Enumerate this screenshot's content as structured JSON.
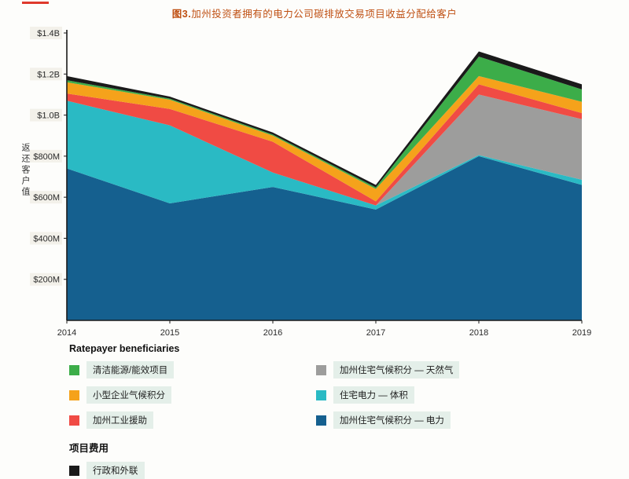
{
  "title": {
    "prefix": "图3.",
    "text": "加州投资者拥有的电力公司碳排放交易项目收益分配给客户"
  },
  "chart_data": {
    "type": "area",
    "stacked": true,
    "title": "图3.加州投资者拥有的电力公司碳排放交易项目收益分配给客户",
    "xlabel": "",
    "ylabel": "返还客户值",
    "x": [
      2014,
      2015,
      2016,
      2017,
      2018,
      2019
    ],
    "y_unit": "USD millions",
    "ylim": [
      0,
      1400
    ],
    "grid": false,
    "legend_position": "bottom",
    "yticks": [
      {
        "value": 200,
        "label": "$200M"
      },
      {
        "value": 400,
        "label": "$400M"
      },
      {
        "value": 600,
        "label": "$600M"
      },
      {
        "value": 800,
        "label": "$800M"
      },
      {
        "value": 1000,
        "label": "$1.0B"
      },
      {
        "value": 1200,
        "label": "$1.2B"
      },
      {
        "value": 1400,
        "label": "$1.4B"
      }
    ],
    "series": [
      {
        "name": "加州住宅气候积分 — 电力",
        "color": "#15608F",
        "values": [
          740,
          570,
          650,
          540,
          800,
          660
        ]
      },
      {
        "name": "住宅电力 — 体积",
        "color": "#2ABAC4",
        "values": [
          330,
          380,
          70,
          20,
          5,
          25
        ]
      },
      {
        "name": "加州住宅气候积分 — 天然气",
        "color": "#9D9D9C",
        "values": [
          0,
          0,
          0,
          0,
          295,
          295
        ]
      },
      {
        "name": "加州工业援助",
        "color": "#F04B44",
        "values": [
          35,
          80,
          150,
          20,
          50,
          30
        ]
      },
      {
        "name": "小型企业气候积分",
        "color": "#F5A21B",
        "values": [
          55,
          45,
          30,
          60,
          40,
          55
        ]
      },
      {
        "name": "清洁能源/能效项目",
        "color": "#3CAD49",
        "values": [
          10,
          5,
          5,
          8,
          95,
          60
        ]
      },
      {
        "name": "行政和外联",
        "color": "#1A1A1A",
        "values": [
          20,
          10,
          10,
          12,
          25,
          25
        ]
      }
    ]
  },
  "legend": {
    "beneficiaries_heading": "Ratepayer beneficiaries",
    "costs_heading": "项目费用",
    "col1": [
      {
        "label": "清洁能源/能效项目",
        "color": "#3CAD49"
      },
      {
        "label": "小型企业气候积分",
        "color": "#F5A21B"
      },
      {
        "label": "加州工业援助",
        "color": "#F04B44"
      }
    ],
    "col2": [
      {
        "label": "加州住宅气候积分 — 天然气",
        "color": "#9D9D9C"
      },
      {
        "label": "住宅电力 — 体积",
        "color": "#2ABAC4"
      },
      {
        "label": "加州住宅气候积分 — 电力",
        "color": "#15608F"
      }
    ],
    "costs_items": [
      {
        "label": "行政和外联",
        "color": "#1A1A1A"
      }
    ]
  }
}
